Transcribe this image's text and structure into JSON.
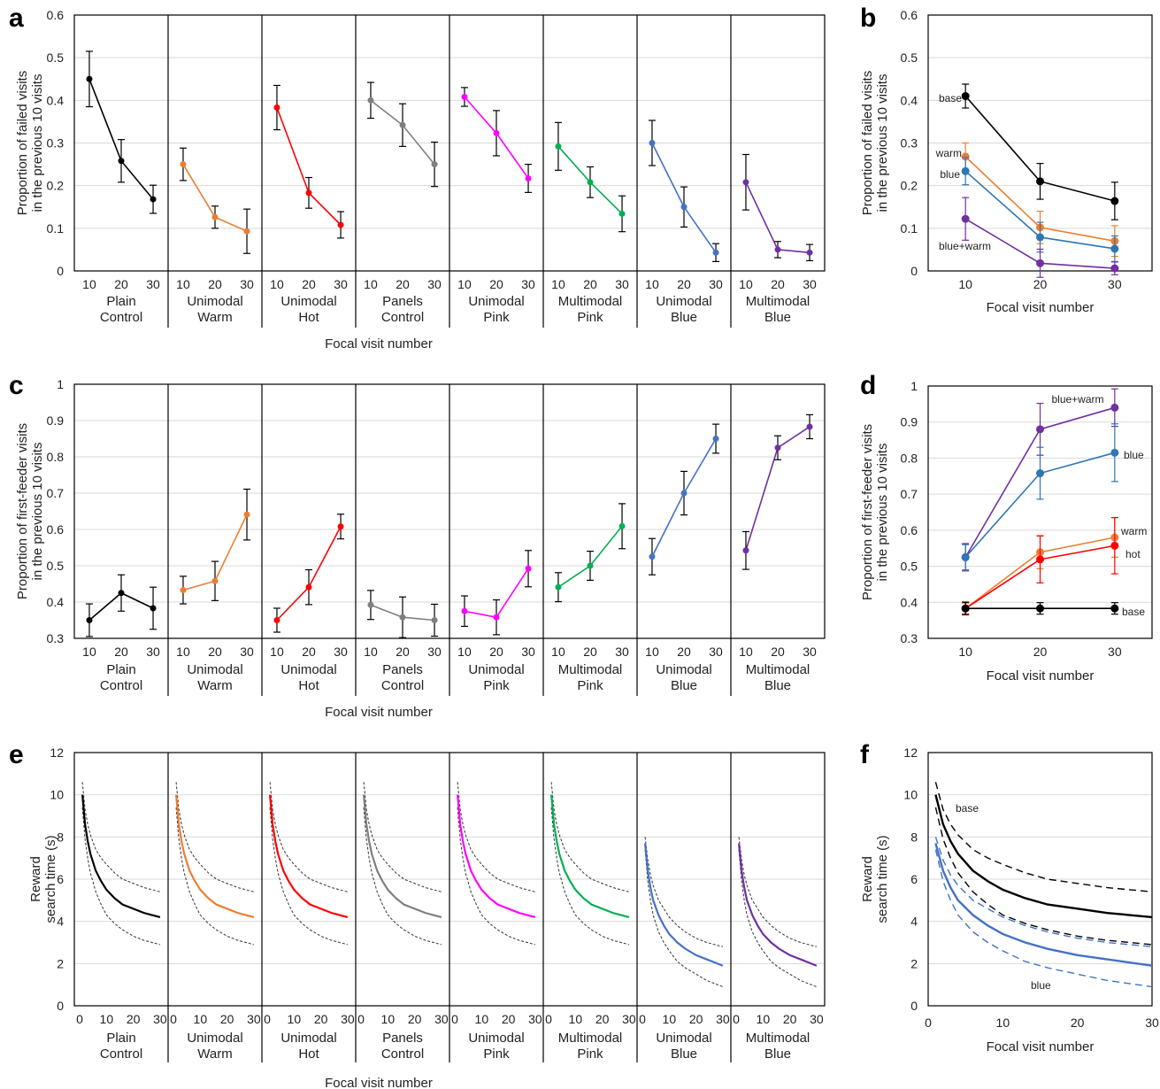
{
  "colors": {
    "plain": "#000000",
    "warm": "#ED7D31",
    "hot": "#FF0000",
    "panels": "#7F7F7F",
    "pink": "#FF00FF",
    "multipink": "#00B050",
    "blue": "#4472C4",
    "multiblue": "#7030A0",
    "b_blue": "#2E75B6",
    "grid": "#D9D9D9"
  },
  "groups": [
    {
      "line1": "Plain",
      "line2": "Control"
    },
    {
      "line1": "Unimodal",
      "line2": "Warm"
    },
    {
      "line1": "Unimodal",
      "line2": "Hot"
    },
    {
      "line1": "Panels",
      "line2": "Control"
    },
    {
      "line1": "Unimodal",
      "line2": "Pink"
    },
    {
      "line1": "Multimodal",
      "line2": "Pink"
    },
    {
      "line1": "Unimodal",
      "line2": "Blue"
    },
    {
      "line1": "Multimodal",
      "line2": "Blue"
    }
  ],
  "group_colors": [
    "plain",
    "warm",
    "hot",
    "panels",
    "pink",
    "multipink",
    "blue",
    "multiblue"
  ],
  "chart_data": [
    {
      "id": "a",
      "letter": "a",
      "type": "line",
      "ylabel_line1": "Proportion of failed visits",
      "ylabel_line2": "in the previous 10 visits",
      "xlabel": "Focal visit number",
      "ylim": [
        0,
        0.6
      ],
      "yticks": [
        "0",
        "0.1",
        "0.2",
        "0.3",
        "0.4",
        "0.5",
        "0.6"
      ],
      "x": [
        10,
        20,
        30
      ],
      "xticks": [
        "10",
        "20",
        "30"
      ],
      "grid": true,
      "series": [
        {
          "values": [
            0.45,
            0.258,
            0.168
          ],
          "err": [
            0.065,
            0.05,
            0.033
          ]
        },
        {
          "values": [
            0.25,
            0.126,
            0.093
          ],
          "err": [
            0.038,
            0.026,
            0.052
          ]
        },
        {
          "values": [
            0.383,
            0.183,
            0.108
          ],
          "err": [
            0.052,
            0.036,
            0.031
          ]
        },
        {
          "values": [
            0.4,
            0.342,
            0.25
          ],
          "err": [
            0.042,
            0.05,
            0.052
          ]
        },
        {
          "values": [
            0.408,
            0.323,
            0.217
          ],
          "err": [
            0.022,
            0.053,
            0.033
          ]
        },
        {
          "values": [
            0.292,
            0.208,
            0.134
          ],
          "err": [
            0.056,
            0.036,
            0.042
          ]
        },
        {
          "values": [
            0.3,
            0.15,
            0.043
          ],
          "err": [
            0.053,
            0.047,
            0.021
          ]
        },
        {
          "values": [
            0.208,
            0.05,
            0.043
          ],
          "err": [
            0.065,
            0.019,
            0.019
          ]
        }
      ]
    },
    {
      "id": "b",
      "letter": "b",
      "type": "line",
      "ylabel_line1": "Proportion of failed visits",
      "ylabel_line2": "in the previous 10 visits",
      "xlabel": "Focal visit number",
      "ylim": [
        0,
        0.6
      ],
      "xlim": [
        5,
        35
      ],
      "yticks": [
        "0",
        "0.1",
        "0.2",
        "0.3",
        "0.4",
        "0.5",
        "0.6"
      ],
      "x": [
        10,
        20,
        30
      ],
      "xticks": [
        "10",
        "20",
        "30"
      ],
      "grid": true,
      "series": [
        {
          "name": "base",
          "color": "plain",
          "values": [
            0.41,
            0.21,
            0.164
          ],
          "err": [
            0.028,
            0.042,
            0.044
          ]
        },
        {
          "name": "warm",
          "color": "warm",
          "values": [
            0.268,
            0.102,
            0.07
          ],
          "err": [
            0.032,
            0.038,
            0.036
          ]
        },
        {
          "name": "blue",
          "color": "b_blue",
          "values": [
            0.234,
            0.079,
            0.052
          ],
          "err": [
            0.032,
            0.035,
            0.03
          ]
        },
        {
          "name": "blue+warm",
          "color": "multiblue",
          "values": [
            0.122,
            0.018,
            0.006
          ],
          "err": [
            0.05,
            0.033,
            0.015
          ]
        }
      ]
    },
    {
      "id": "c",
      "letter": "c",
      "type": "line",
      "ylabel_line1": "Proportion of first-feeder visits",
      "ylabel_line2": "in the previous 10 visits",
      "xlabel": "Focal visit number",
      "ylim": [
        0.3,
        1
      ],
      "yticks": [
        "0.3",
        "0.4",
        "0.5",
        "0.6",
        "0.7",
        "0.8",
        "0.9",
        "1"
      ],
      "x": [
        10,
        20,
        30
      ],
      "xticks": [
        "10",
        "20",
        "30"
      ],
      "grid": true,
      "series": [
        {
          "values": [
            0.35,
            0.425,
            0.383
          ],
          "err": [
            0.045,
            0.05,
            0.058
          ]
        },
        {
          "values": [
            0.433,
            0.458,
            0.641
          ],
          "err": [
            0.038,
            0.054,
            0.07
          ]
        },
        {
          "values": [
            0.35,
            0.441,
            0.608
          ],
          "err": [
            0.033,
            0.048,
            0.034
          ]
        },
        {
          "values": [
            0.392,
            0.358,
            0.35
          ],
          "err": [
            0.04,
            0.056,
            0.044
          ]
        },
        {
          "values": [
            0.375,
            0.358,
            0.492
          ],
          "err": [
            0.042,
            0.048,
            0.05
          ]
        },
        {
          "values": [
            0.441,
            0.5,
            0.609
          ],
          "err": [
            0.04,
            0.04,
            0.062
          ]
        },
        {
          "values": [
            0.525,
            0.7,
            0.85
          ],
          "err": [
            0.05,
            0.06,
            0.04
          ]
        },
        {
          "values": [
            0.542,
            0.825,
            0.883
          ],
          "err": [
            0.052,
            0.033,
            0.033
          ]
        }
      ]
    },
    {
      "id": "d",
      "letter": "d",
      "type": "line",
      "ylabel_line1": "Proportion of first-feeder visits",
      "ylabel_line2": "in the previous 10 visits",
      "xlabel": "Focal visit number",
      "ylim": [
        0.3,
        1
      ],
      "xlim": [
        5,
        35
      ],
      "yticks": [
        "0.3",
        "0.4",
        "0.5",
        "0.6",
        "0.7",
        "0.8",
        "0.9",
        "1"
      ],
      "x": [
        10,
        20,
        30
      ],
      "xticks": [
        "10",
        "20",
        "30"
      ],
      "grid": true,
      "series": [
        {
          "name": "blue+warm",
          "color": "multiblue",
          "values": [
            0.525,
            0.88,
            0.94
          ],
          "err": [
            0.038,
            0.072,
            0.052
          ]
        },
        {
          "name": "blue",
          "color": "b_blue",
          "values": [
            0.525,
            0.758,
            0.815
          ],
          "err": [
            0.035,
            0.072,
            0.08
          ]
        },
        {
          "name": "warm",
          "color": "warm",
          "values": [
            0.383,
            0.539,
            0.58
          ],
          "err": [
            0.018,
            0.046,
            0.055
          ]
        },
        {
          "name": "hot",
          "color": "hot",
          "values": [
            0.383,
            0.519,
            0.557
          ],
          "err": [
            0.018,
            0.065,
            0.078
          ]
        },
        {
          "name": "base",
          "color": "plain",
          "values": [
            0.383,
            0.383,
            0.383
          ],
          "err": [
            0.016,
            0.016,
            0.016
          ]
        }
      ]
    },
    {
      "id": "e",
      "letter": "e",
      "type": "line",
      "ylabel_line1": "Reward",
      "ylabel_line2": "search time (s)",
      "xlabel": "Focal visit number",
      "ylim": [
        0,
        12
      ],
      "yticks": [
        "0",
        "2",
        "4",
        "6",
        "8",
        "10",
        "12"
      ],
      "xlim": [
        -2,
        33
      ],
      "xticks": [
        "0",
        "10",
        "20",
        "30"
      ],
      "grid": true,
      "curve_x": [
        1,
        2,
        3,
        4,
        6,
        8,
        10,
        13,
        16,
        20,
        24,
        27,
        30
      ],
      "series": [
        {
          "values": [
            10.0,
            8.6,
            7.8,
            7.2,
            6.4,
            5.9,
            5.5,
            5.1,
            4.8,
            4.6,
            4.4,
            4.3,
            4.2
          ],
          "upper": [
            10.6,
            9.3,
            8.6,
            8.1,
            7.4,
            7.0,
            6.7,
            6.3,
            6.0,
            5.8,
            5.6,
            5.5,
            5.4
          ],
          "lower": [
            9.4,
            7.9,
            7.0,
            6.3,
            5.4,
            4.8,
            4.3,
            3.9,
            3.6,
            3.3,
            3.1,
            3.0,
            2.9
          ]
        },
        {
          "values": [
            10.0,
            8.6,
            7.8,
            7.2,
            6.4,
            5.9,
            5.5,
            5.1,
            4.8,
            4.6,
            4.4,
            4.3,
            4.2
          ],
          "upper": [
            10.6,
            9.3,
            8.6,
            8.1,
            7.4,
            7.0,
            6.7,
            6.3,
            6.0,
            5.8,
            5.6,
            5.5,
            5.4
          ],
          "lower": [
            9.4,
            7.9,
            7.0,
            6.3,
            5.4,
            4.8,
            4.3,
            3.9,
            3.6,
            3.3,
            3.1,
            3.0,
            2.9
          ]
        },
        {
          "values": [
            10.0,
            8.6,
            7.8,
            7.2,
            6.4,
            5.9,
            5.5,
            5.1,
            4.8,
            4.6,
            4.4,
            4.3,
            4.2
          ],
          "upper": [
            10.6,
            9.3,
            8.6,
            8.1,
            7.4,
            7.0,
            6.7,
            6.3,
            6.0,
            5.8,
            5.6,
            5.5,
            5.4
          ],
          "lower": [
            9.4,
            7.9,
            7.0,
            6.3,
            5.4,
            4.8,
            4.3,
            3.9,
            3.6,
            3.3,
            3.1,
            3.0,
            2.9
          ]
        },
        {
          "values": [
            10.0,
            8.6,
            7.8,
            7.2,
            6.4,
            5.9,
            5.5,
            5.1,
            4.8,
            4.6,
            4.4,
            4.3,
            4.2
          ],
          "upper": [
            10.6,
            9.3,
            8.6,
            8.1,
            7.4,
            7.0,
            6.7,
            6.3,
            6.0,
            5.8,
            5.6,
            5.5,
            5.4
          ],
          "lower": [
            9.4,
            7.9,
            7.0,
            6.3,
            5.4,
            4.8,
            4.3,
            3.9,
            3.6,
            3.3,
            3.1,
            3.0,
            2.9
          ]
        },
        {
          "values": [
            10.0,
            8.6,
            7.8,
            7.2,
            6.4,
            5.9,
            5.5,
            5.1,
            4.8,
            4.6,
            4.4,
            4.3,
            4.2
          ],
          "upper": [
            10.6,
            9.3,
            8.6,
            8.1,
            7.4,
            7.0,
            6.7,
            6.3,
            6.0,
            5.8,
            5.6,
            5.5,
            5.4
          ],
          "lower": [
            9.4,
            7.9,
            7.0,
            6.3,
            5.4,
            4.8,
            4.3,
            3.9,
            3.6,
            3.3,
            3.1,
            3.0,
            2.9
          ]
        },
        {
          "values": [
            10.0,
            8.6,
            7.8,
            7.2,
            6.4,
            5.9,
            5.5,
            5.1,
            4.8,
            4.6,
            4.4,
            4.3,
            4.2
          ],
          "upper": [
            10.6,
            9.3,
            8.6,
            8.1,
            7.4,
            7.0,
            6.7,
            6.3,
            6.0,
            5.8,
            5.6,
            5.5,
            5.4
          ],
          "lower": [
            9.4,
            7.9,
            7.0,
            6.3,
            5.4,
            4.8,
            4.3,
            3.9,
            3.6,
            3.3,
            3.1,
            3.0,
            2.9
          ]
        },
        {
          "values": [
            7.7,
            6.4,
            5.6,
            5.0,
            4.3,
            3.8,
            3.4,
            3.0,
            2.7,
            2.4,
            2.2,
            2.05,
            1.9
          ],
          "upper": [
            8.0,
            6.9,
            6.2,
            5.7,
            5.0,
            4.6,
            4.2,
            3.8,
            3.5,
            3.2,
            3.0,
            2.9,
            2.8
          ],
          "lower": [
            7.4,
            5.9,
            5.0,
            4.3,
            3.5,
            3.0,
            2.6,
            2.1,
            1.8,
            1.5,
            1.2,
            1.05,
            0.9
          ]
        },
        {
          "values": [
            7.7,
            6.4,
            5.6,
            5.0,
            4.3,
            3.8,
            3.4,
            3.0,
            2.7,
            2.4,
            2.2,
            2.05,
            1.9
          ],
          "upper": [
            8.0,
            6.9,
            6.2,
            5.7,
            5.0,
            4.6,
            4.2,
            3.8,
            3.5,
            3.2,
            3.0,
            2.9,
            2.8
          ],
          "lower": [
            7.4,
            5.9,
            5.0,
            4.3,
            3.5,
            3.0,
            2.6,
            2.1,
            1.8,
            1.5,
            1.2,
            1.05,
            0.9
          ]
        }
      ]
    },
    {
      "id": "f",
      "letter": "f",
      "type": "line",
      "ylabel_line1": "Reward",
      "ylabel_line2": "search time (s)",
      "xlabel": "Focal visit number",
      "ylim": [
        0,
        12
      ],
      "xlim": [
        0,
        30
      ],
      "yticks": [
        "0",
        "2",
        "4",
        "6",
        "8",
        "10",
        "12"
      ],
      "xticks": [
        "0",
        "10",
        "20",
        "30"
      ],
      "grid": true,
      "curve_x": [
        1,
        2,
        3,
        4,
        6,
        8,
        10,
        13,
        16,
        20,
        24,
        27,
        30
      ],
      "series": [
        {
          "name": "base",
          "color": "plain",
          "values": [
            10.0,
            8.6,
            7.8,
            7.2,
            6.4,
            5.9,
            5.5,
            5.1,
            4.8,
            4.6,
            4.4,
            4.3,
            4.2
          ],
          "upper": [
            10.6,
            9.3,
            8.6,
            8.1,
            7.4,
            7.0,
            6.7,
            6.3,
            6.0,
            5.8,
            5.6,
            5.5,
            5.4
          ],
          "lower": [
            9.4,
            7.9,
            7.0,
            6.3,
            5.4,
            4.8,
            4.3,
            3.9,
            3.6,
            3.3,
            3.1,
            3.0,
            2.9
          ]
        },
        {
          "name": "blue",
          "color": "blue",
          "values": [
            7.7,
            6.4,
            5.6,
            5.0,
            4.3,
            3.8,
            3.4,
            3.0,
            2.7,
            2.4,
            2.2,
            2.05,
            1.9
          ],
          "upper": [
            8.0,
            6.9,
            6.2,
            5.7,
            5.0,
            4.6,
            4.2,
            3.8,
            3.5,
            3.2,
            3.0,
            2.9,
            2.8
          ],
          "lower": [
            7.4,
            5.9,
            5.0,
            4.3,
            3.5,
            3.0,
            2.6,
            2.1,
            1.8,
            1.5,
            1.2,
            1.05,
            0.9
          ]
        }
      ]
    }
  ]
}
